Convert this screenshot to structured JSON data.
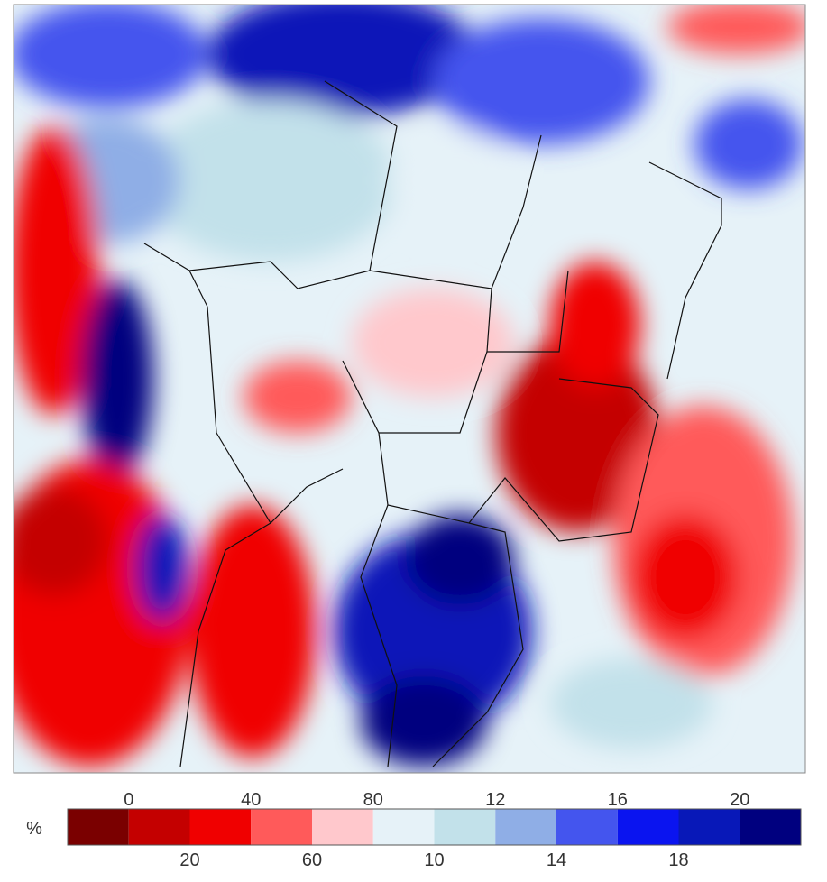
{
  "colorbar": {
    "unit": "%",
    "colors": [
      "#7a0000",
      "#c40000",
      "#f00000",
      "#ff5a5a",
      "#ffc8cc",
      "#e6f2f8",
      "#c2e1ea",
      "#8faee6",
      "#4455ee",
      "#0a14f0",
      "#0818b8",
      "#00007f"
    ],
    "top_labels": [
      "0",
      "40",
      "80",
      "12",
      "16",
      "20"
    ],
    "bottom_labels": [
      "20",
      "60",
      "10",
      "14",
      "18"
    ]
  }
}
